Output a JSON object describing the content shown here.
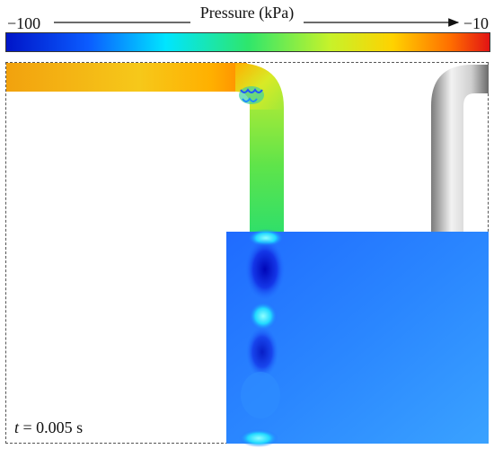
{
  "colorbar": {
    "title": "Pressure (kPa)",
    "min_label": "−100",
    "max_label": "−10",
    "colors": [
      "#0015c8",
      "#0b5cff",
      "#00e5ff",
      "#2ee66c",
      "#c7f22a",
      "#ffd200",
      "#ff6d00",
      "#e21414"
    ]
  },
  "time": {
    "variable": "t",
    "value": "= 0.005 s"
  }
}
